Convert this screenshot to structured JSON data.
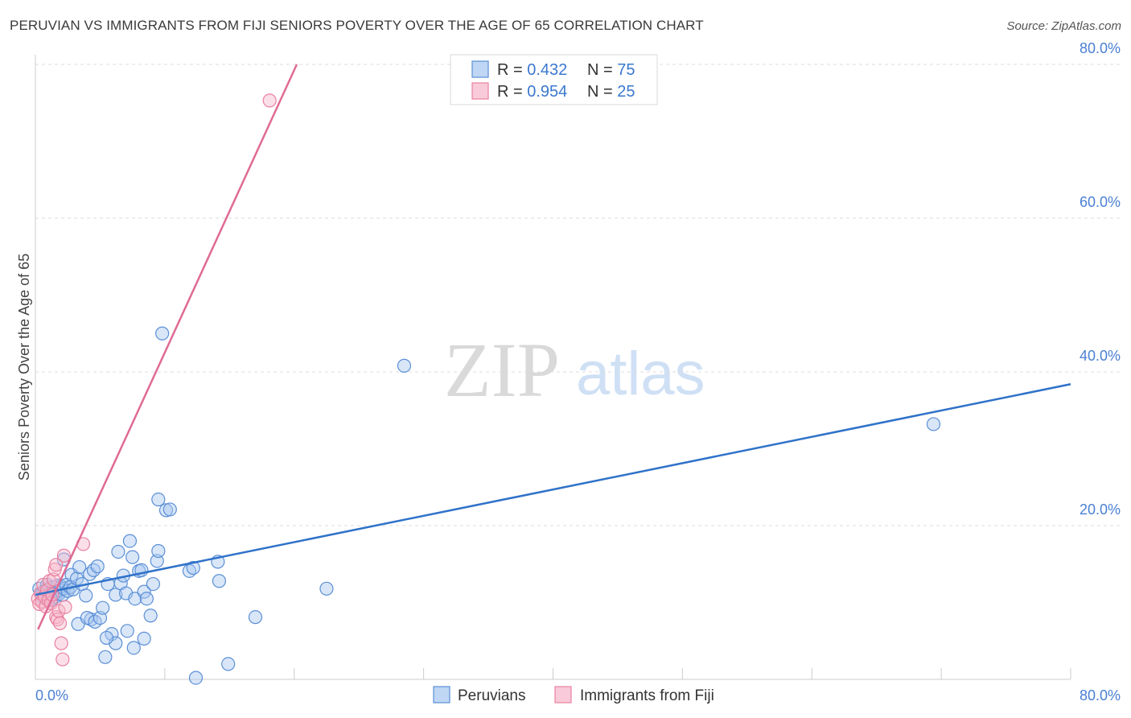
{
  "header": {
    "title": "PERUVIAN VS IMMIGRANTS FROM FIJI SENIORS POVERTY OVER THE AGE OF 65 CORRELATION CHART",
    "source": "Source: ZipAtlas.com"
  },
  "watermark": {
    "zip": "ZIP",
    "atlas": "atlas"
  },
  "legend_top": {
    "rows": [
      {
        "r_label": "R = ",
        "r_value": "0.432",
        "n_label": "N = ",
        "n_value": "75"
      },
      {
        "r_label": "R = ",
        "r_value": "0.954",
        "n_label": "N = ",
        "n_value": "25"
      }
    ]
  },
  "colors": {
    "peruvians_fill": "#a9c8f0",
    "peruvians_stroke": "#5b8fd6",
    "peruvians_line": "#2f72c9",
    "fiji_fill": "#f7b8cc",
    "fiji_stroke": "#e8819f",
    "fiji_line": "#e06a95",
    "grid": "#dddddd",
    "tick_text": "#4a7fd4"
  },
  "chart_data": {
    "type": "scatter",
    "title": "PERUVIAN VS IMMIGRANTS FROM FIJI SENIORS POVERTY OVER THE AGE OF 65 CORRELATION CHART",
    "xlabel": "",
    "ylabel": "Seniors Poverty Over the Age of 65",
    "xlim": [
      0,
      80
    ],
    "ylim": [
      0,
      80
    ],
    "x_tick_labels": [
      "0.0%",
      "80.0%"
    ],
    "y_ticks": [
      {
        "value": 20,
        "label": "20.0%"
      },
      {
        "value": 40,
        "label": "40.0%"
      },
      {
        "value": 60,
        "label": "60.0%"
      },
      {
        "value": 80,
        "label": "80.0%"
      }
    ],
    "legend": [
      "Peruvians",
      "Immigrants from Fiji"
    ],
    "series": [
      {
        "name": "Peruvians",
        "r": 0.432,
        "n": 75,
        "trend": {
          "x": [
            0,
            80
          ],
          "y": [
            11.0,
            38.4
          ]
        },
        "points": [
          [
            0.3,
            11.8
          ],
          [
            0.5,
            11.2
          ],
          [
            0.6,
            10.6
          ],
          [
            0.7,
            11.5
          ],
          [
            0.9,
            12.3
          ],
          [
            1.0,
            10.9
          ],
          [
            1.1,
            11.9
          ],
          [
            1.2,
            10.3
          ],
          [
            1.3,
            11.4
          ],
          [
            1.4,
            12.0
          ],
          [
            1.5,
            10.7
          ],
          [
            1.6,
            11.3
          ],
          [
            1.7,
            12.2
          ],
          [
            1.8,
            11.1
          ],
          [
            1.9,
            11.6
          ],
          [
            2.0,
            12.1
          ],
          [
            2.1,
            11.0
          ],
          [
            2.2,
            11.8
          ],
          [
            2.4,
            12.3
          ],
          [
            2.5,
            11.5
          ],
          [
            2.7,
            12.0
          ],
          [
            2.9,
            11.7
          ],
          [
            2.2,
            15.6
          ],
          [
            2.8,
            13.6
          ],
          [
            3.2,
            13.1
          ],
          [
            3.4,
            14.6
          ],
          [
            3.6,
            12.4
          ],
          [
            3.9,
            10.9
          ],
          [
            3.3,
            7.2
          ],
          [
            4.2,
            13.7
          ],
          [
            4.5,
            14.2
          ],
          [
            4.8,
            14.7
          ],
          [
            4.3,
            7.8
          ],
          [
            4.0,
            8.0
          ],
          [
            4.6,
            7.5
          ],
          [
            5.0,
            8.0
          ],
          [
            5.2,
            9.3
          ],
          [
            5.6,
            12.4
          ],
          [
            5.9,
            5.9
          ],
          [
            6.2,
            11.0
          ],
          [
            6.4,
            16.6
          ],
          [
            6.6,
            12.5
          ],
          [
            6.8,
            13.5
          ],
          [
            7.0,
            11.2
          ],
          [
            7.1,
            6.3
          ],
          [
            7.3,
            18.0
          ],
          [
            7.5,
            15.9
          ],
          [
            7.7,
            10.5
          ],
          [
            8.0,
            14.1
          ],
          [
            8.2,
            14.2
          ],
          [
            8.4,
            11.4
          ],
          [
            8.6,
            10.5
          ],
          [
            8.9,
            8.3
          ],
          [
            9.1,
            12.4
          ],
          [
            9.4,
            15.4
          ],
          [
            9.5,
            16.7
          ],
          [
            9.8,
            45.0
          ],
          [
            10.1,
            22.0
          ],
          [
            10.4,
            22.1
          ],
          [
            9.5,
            23.4
          ],
          [
            11.9,
            14.1
          ],
          [
            12.2,
            14.5
          ],
          [
            14.1,
            15.3
          ],
          [
            14.2,
            12.8
          ],
          [
            14.9,
            2.0
          ],
          [
            17.0,
            8.1
          ],
          [
            22.5,
            11.8
          ],
          [
            28.5,
            40.8
          ],
          [
            69.4,
            33.2
          ],
          [
            6.2,
            4.7
          ],
          [
            7.6,
            4.1
          ],
          [
            5.5,
            5.4
          ],
          [
            5.4,
            2.9
          ],
          [
            12.4,
            0.2
          ],
          [
            8.4,
            5.3
          ]
        ]
      },
      {
        "name": "Immigrants from Fiji",
        "r": 0.954,
        "n": 25,
        "trend": {
          "x": [
            0.2,
            20.2
          ],
          "y": [
            6.5,
            80.0
          ]
        },
        "points": [
          [
            0.2,
            10.5
          ],
          [
            0.3,
            9.8
          ],
          [
            0.4,
            11.2
          ],
          [
            0.5,
            10.1
          ],
          [
            0.6,
            12.3
          ],
          [
            0.7,
            10.8
          ],
          [
            0.8,
            9.5
          ],
          [
            0.9,
            11.6
          ],
          [
            1.0,
            10.3
          ],
          [
            1.1,
            12.8
          ],
          [
            1.2,
            9.9
          ],
          [
            1.3,
            11.0
          ],
          [
            1.4,
            13.0
          ],
          [
            1.5,
            14.3
          ],
          [
            1.6,
            8.1
          ],
          [
            1.7,
            7.8
          ],
          [
            1.8,
            8.9
          ],
          [
            1.9,
            7.3
          ],
          [
            2.0,
            4.7
          ],
          [
            2.1,
            2.6
          ],
          [
            2.3,
            9.4
          ],
          [
            2.2,
            16.1
          ],
          [
            3.7,
            17.6
          ],
          [
            1.6,
            14.9
          ],
          [
            18.1,
            75.3
          ]
        ]
      }
    ]
  }
}
